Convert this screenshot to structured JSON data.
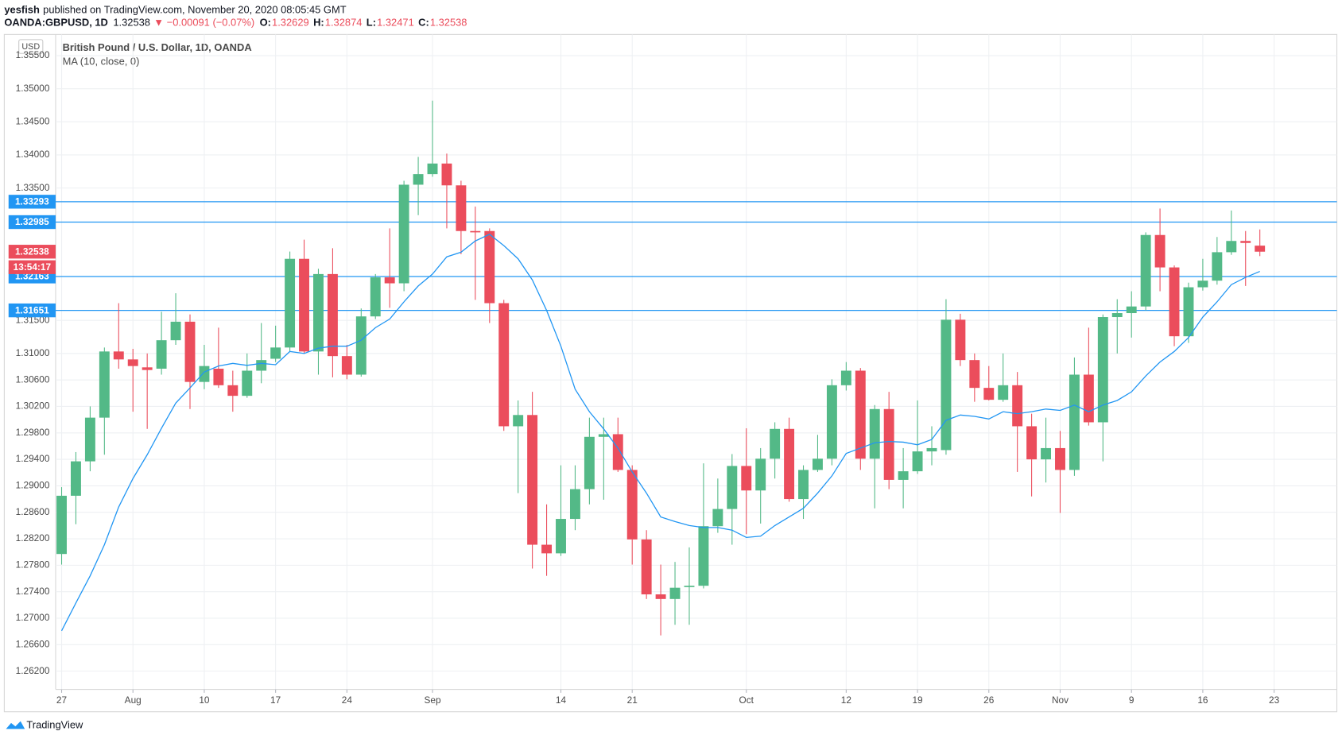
{
  "header": {
    "publisher": "yesfish",
    "published": "published on TradingView.com, November 20, 2020 08:05:45 GMT",
    "symbol": "OANDA:GBPUSD, 1D",
    "last": "1.32538",
    "change": "▼ −0.00091 (−0.07%)",
    "ohlc": [
      {
        "key": "O:",
        "value": "1.32629"
      },
      {
        "key": "H:",
        "value": "1.32874"
      },
      {
        "key": "L:",
        "value": "1.32471"
      },
      {
        "key": "C:",
        "value": "1.32538"
      }
    ]
  },
  "chart_data": {
    "type": "candlestick",
    "title": "British Pound / U.S. Dollar, 1D, OANDA",
    "currency": "USD",
    "categories": [
      "27",
      null,
      null,
      null,
      null,
      "Aug",
      null,
      null,
      null,
      null,
      "10",
      null,
      null,
      null,
      null,
      "17",
      null,
      null,
      null,
      null,
      "24",
      null,
      null,
      null,
      null,
      null,
      "Sep",
      null,
      null,
      null,
      null,
      null,
      null,
      null,
      null,
      "14",
      null,
      null,
      null,
      null,
      "21",
      null,
      null,
      null,
      null,
      null,
      null,
      null,
      "Oct",
      null,
      null,
      null,
      null,
      null,
      null,
      "12",
      null,
      null,
      null,
      null,
      "19",
      null,
      null,
      null,
      null,
      "26",
      null,
      null,
      null,
      null,
      "Nov",
      null,
      null,
      null,
      null,
      "9",
      null,
      null,
      null,
      null,
      "16",
      null,
      null,
      null,
      null,
      "23"
    ],
    "open": [
      1.2797,
      1.2885,
      1.2937,
      1.3003,
      1.3103,
      1.3091,
      1.3079,
      1.3077,
      1.312,
      1.3148,
      1.3057,
      1.3077,
      1.3052,
      1.3036,
      1.3074,
      1.3092,
      1.3109,
      1.3243,
      1.3103,
      1.322,
      1.3096,
      1.3068,
      1.3156,
      1.3215,
      1.3206,
      1.3355,
      1.3371,
      1.3387,
      1.3354,
      1.3285,
      1.3285,
      1.3176,
      1.299,
      1.3007,
      1.2811,
      1.2798,
      1.285,
      1.2895,
      1.2974,
      1.2978,
      1.2924,
      1.2819,
      1.2736,
      1.2729,
      1.2747,
      1.2749,
      1.2839,
      1.2865,
      1.293,
      1.2893,
      1.2941,
      1.2986,
      1.288,
      1.2924,
      1.2941,
      1.3052,
      1.3074,
      1.2941,
      1.3016,
      1.2909,
      1.2922,
      1.2952,
      1.2954,
      1.3151,
      1.309,
      1.3048,
      1.303,
      1.3052,
      1.299,
      1.294,
      1.2957,
      1.2924,
      1.3068,
      1.2996,
      1.3155,
      1.3161,
      1.3171,
      1.3279,
      1.323,
      1.3126,
      1.32,
      1.321,
      1.3253,
      1.327,
      1.32629,
      null
    ],
    "high": [
      1.2898,
      1.2951,
      1.302,
      1.3109,
      1.3176,
      1.3107,
      1.31,
      1.3163,
      1.3191,
      1.3159,
      1.3113,
      1.3139,
      1.3074,
      1.31,
      1.3146,
      1.3142,
      1.3254,
      1.3272,
      1.3228,
      1.3259,
      1.3113,
      1.3168,
      1.322,
      1.3289,
      1.3361,
      1.3397,
      1.3482,
      1.3402,
      1.3361,
      1.3322,
      1.3289,
      1.3181,
      1.3029,
      1.3042,
      1.2872,
      1.2931,
      1.2931,
      1.3003,
      1.3003,
      1.3003,
      1.2931,
      1.2833,
      1.2781,
      1.2785,
      1.2807,
      1.2934,
      1.2911,
      1.2948,
      1.2987,
      1.2957,
      1.2996,
      1.3003,
      1.2931,
      1.2977,
      1.3061,
      1.3087,
      1.3078,
      1.3022,
      1.3042,
      1.2957,
      1.3029,
      1.299,
      1.3182,
      1.316,
      1.31,
      1.3081,
      1.31,
      1.3072,
      1.3009,
      1.3003,
      1.2983,
      1.3094,
      1.3139,
      1.3159,
      1.3182,
      1.3194,
      1.3283,
      1.3319,
      1.3233,
      1.3207,
      1.3243,
      1.3276,
      1.3316,
      1.3285,
      1.32874,
      null
    ],
    "low": [
      1.2781,
      1.2842,
      1.2922,
      1.2947,
      1.3077,
      1.3012,
      1.2986,
      1.3068,
      1.3113,
      1.3016,
      1.3046,
      1.3048,
      1.3012,
      1.3033,
      1.3055,
      1.3087,
      1.3103,
      1.31,
      1.3068,
      1.3064,
      1.3061,
      1.3065,
      1.3152,
      1.3169,
      1.3194,
      1.3309,
      1.3367,
      1.3289,
      1.325,
      1.3181,
      1.3146,
      1.2983,
      1.2889,
      1.2775,
      1.2764,
      1.2794,
      1.2833,
      1.2872,
      1.2879,
      1.2921,
      1.2781,
      1.2729,
      1.2674,
      1.269,
      1.269,
      1.2745,
      1.2829,
      1.2811,
      1.2827,
      1.2843,
      1.2911,
      1.2876,
      1.285,
      1.2921,
      1.2931,
      1.3044,
      1.2924,
      1.2866,
      1.2895,
      1.2866,
      1.2918,
      1.2931,
      1.2947,
      1.3081,
      1.3027,
      1.3029,
      1.3027,
      1.2921,
      1.2884,
      1.2905,
      1.2859,
      1.2915,
      1.2991,
      1.2937,
      1.31,
      1.3124,
      1.3165,
      1.3194,
      1.3111,
      1.3116,
      1.3195,
      1.3204,
      1.3249,
      1.3202,
      1.32471,
      null
    ],
    "close": [
      1.2885,
      1.2937,
      1.3003,
      1.3103,
      1.3091,
      1.3081,
      1.3075,
      1.312,
      1.3148,
      1.3057,
      1.3081,
      1.3052,
      1.3036,
      1.3074,
      1.309,
      1.3109,
      1.3243,
      1.3103,
      1.322,
      1.3096,
      1.3068,
      1.3156,
      1.3215,
      1.3206,
      1.3355,
      1.3371,
      1.3387,
      1.3354,
      1.3285,
      1.3283,
      1.3176,
      1.299,
      1.3007,
      1.2811,
      1.2798,
      1.285,
      1.2895,
      1.2974,
      1.2978,
      1.2924,
      1.2819,
      1.2736,
      1.2729,
      1.2746,
      1.2749,
      1.2839,
      1.2865,
      1.293,
      1.2893,
      1.2941,
      1.2986,
      1.288,
      1.2924,
      1.2941,
      1.3052,
      1.3074,
      1.2941,
      1.3016,
      1.2909,
      1.2922,
      1.2952,
      1.2957,
      1.3151,
      1.309,
      1.3048,
      1.303,
      1.3052,
      1.299,
      1.294,
      1.2957,
      1.2924,
      1.3068,
      1.2996,
      1.3155,
      1.3161,
      1.3171,
      1.3279,
      1.323,
      1.3126,
      1.32,
      1.321,
      1.3253,
      1.327,
      1.3267,
      1.32538,
      null
    ],
    "up_color": "#53b987",
    "down_color": "#eb4d5c",
    "series": [
      {
        "name": "MA (10, close, 0)",
        "color": "#2196f3",
        "values": [
          1.2681,
          1.2723,
          1.2764,
          1.2811,
          1.2868,
          1.2911,
          1.2947,
          1.2987,
          1.3025,
          1.3048,
          1.3072,
          1.3081,
          1.3085,
          1.3082,
          1.3085,
          1.3083,
          1.3103,
          1.31,
          1.3108,
          1.3111,
          1.3111,
          1.312,
          1.3139,
          1.3152,
          1.3178,
          1.3202,
          1.322,
          1.3246,
          1.3253,
          1.327,
          1.328,
          1.3263,
          1.3243,
          1.3211,
          1.3165,
          1.3111,
          1.3046,
          1.3012,
          1.2986,
          1.2957,
          1.2921,
          1.2889,
          1.2853,
          1.2846,
          1.284,
          1.2837,
          1.2837,
          1.2833,
          1.2822,
          1.2824,
          1.284,
          1.2853,
          1.2866,
          1.2889,
          1.2915,
          1.2949,
          1.2957,
          1.2965,
          1.2967,
          1.2966,
          1.2962,
          1.297,
          1.2999,
          1.3007,
          1.3005,
          1.3001,
          1.3012,
          1.3009,
          1.3012,
          1.3016,
          1.3014,
          1.3022,
          1.3012,
          1.3022,
          1.3029,
          1.3042,
          1.3066,
          1.3087,
          1.3103,
          1.3124,
          1.3155,
          1.3178,
          1.3204,
          1.3215,
          1.3224,
          null
        ]
      }
    ],
    "hlines": [
      1.33293,
      1.32985,
      1.32163,
      1.31651
    ],
    "hline_color": "#2196f3",
    "last_price": 1.32538,
    "countdown": "13:54:17",
    "ylim": [
      1.25925,
      1.35794
    ],
    "yticks": [
      {
        "value": 1.355,
        "label": "1.35500"
      },
      {
        "value": 1.35,
        "label": "1.35000"
      },
      {
        "value": 1.345,
        "label": "1.34500"
      },
      {
        "value": 1.34,
        "label": "1.34000"
      },
      {
        "value": 1.335,
        "label": "1.33500"
      },
      {
        "value": 1.315,
        "label": "1.31500"
      },
      {
        "value": 1.31,
        "label": "1.31000"
      },
      {
        "value": 1.306,
        "label": "1.30600"
      },
      {
        "value": 1.302,
        "label": "1.30200"
      },
      {
        "value": 1.298,
        "label": "1.29800"
      },
      {
        "value": 1.294,
        "label": "1.29400"
      },
      {
        "value": 1.29,
        "label": "1.29000"
      },
      {
        "value": 1.286,
        "label": "1.28600"
      },
      {
        "value": 1.282,
        "label": "1.28200"
      },
      {
        "value": 1.278,
        "label": "1.27800"
      },
      {
        "value": 1.274,
        "label": "1.27400"
      },
      {
        "value": 1.27,
        "label": "1.27000"
      },
      {
        "value": 1.266,
        "label": "1.26600"
      },
      {
        "value": 1.262,
        "label": "1.26200"
      }
    ],
    "grid": true
  },
  "footer": {
    "brand": "TradingView"
  }
}
